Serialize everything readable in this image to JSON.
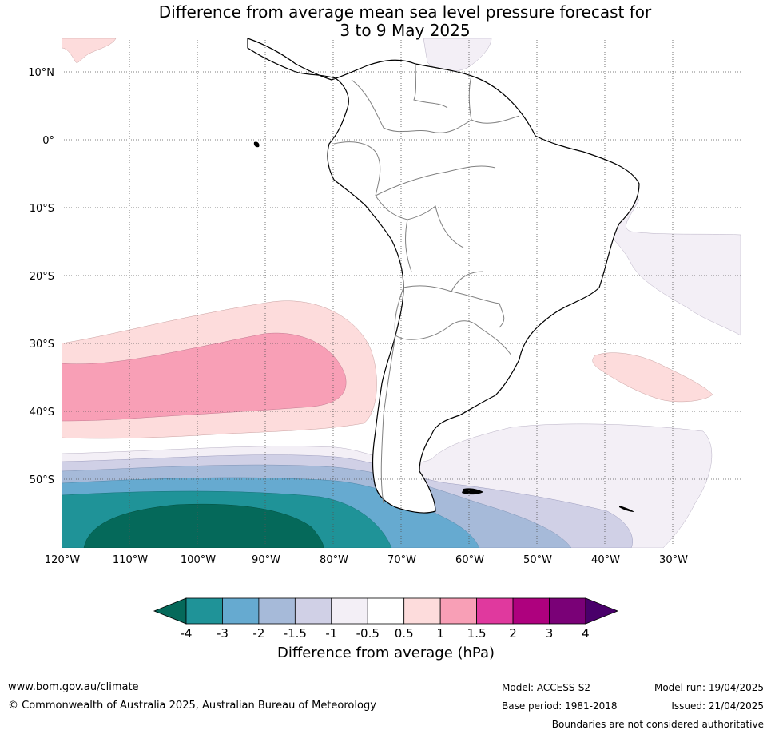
{
  "title_line1": "Difference from average mean sea level pressure forecast for",
  "title_line2": "3 to 9 May 2025",
  "lat_labels": [
    "10°N",
    "0°",
    "10°S",
    "20°S",
    "30°S",
    "40°S",
    "50°S"
  ],
  "lon_labels": [
    "120°W",
    "110°W",
    "100°W",
    "90°W",
    "80°W",
    "70°W",
    "60°W",
    "50°W",
    "40°W",
    "30°W"
  ],
  "colorbar": {
    "title": "Difference from average (hPa)",
    "ticks": [
      "-4",
      "-3",
      "-2",
      "-1.5",
      "-1",
      "-0.5",
      "0.5",
      "1",
      "1.5",
      "2",
      "3",
      "4"
    ],
    "colors": [
      "#1f9398",
      "#66aad0",
      "#a6bad9",
      "#d0d0e6",
      "#f3eff6",
      "#ffffff",
      "#fddcdc",
      "#f89fb6",
      "#e0399e",
      "#ae017e",
      "#7a0177"
    ],
    "extend_low_color": "#05695a",
    "extend_high_color": "#49006a"
  },
  "footer": {
    "website": "www.bom.gov.au/climate",
    "copyright": "© Commonwealth of Australia 2025, Australian Bureau of Meteorology",
    "model": "Model: ACCESS-S2",
    "base_period": "Base period: 1981-2018",
    "model_run": "Model run: 19/04/2025",
    "issued": "Issued: 21/04/2025",
    "disclaimer": "Boundaries are not considered authoritative"
  }
}
